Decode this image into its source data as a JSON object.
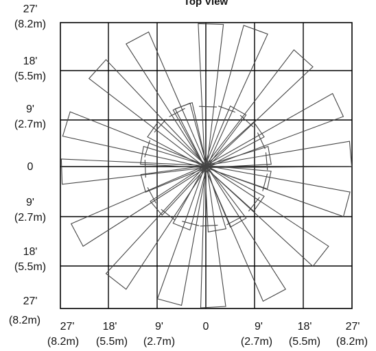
{
  "title": "Top View",
  "y_labels": [
    {
      "ft": "27'",
      "m": "(8.2m)"
    },
    {
      "ft": "18'",
      "m": "(5.5m)"
    },
    {
      "ft": "9'",
      "m": "(2.7m)"
    },
    {
      "ft": "0",
      "m": ""
    },
    {
      "ft": "9'",
      "m": "(2.7m)"
    },
    {
      "ft": "18'",
      "m": "(5.5m)"
    },
    {
      "ft": "27'",
      "m": "(8.2m)"
    }
  ],
  "x_labels": [
    {
      "ft": "27'",
      "m": "(8.2m)"
    },
    {
      "ft": "18'",
      "m": "(5.5m)"
    },
    {
      "ft": "9'",
      "m": "(2.7m)"
    },
    {
      "ft": "0",
      "m": ""
    },
    {
      "ft": "9'",
      "m": "(2.7m)"
    },
    {
      "ft": "18'",
      "m": "(5.5m)"
    },
    {
      "ft": "27'",
      "m": "(8.2m)"
    }
  ],
  "detection_zones": [
    {
      "angle_deg": -88,
      "length_ft": 27
    },
    {
      "angle_deg": -70,
      "length_ft": 27
    },
    {
      "angle_deg": -48,
      "length_ft": 27
    },
    {
      "angle_deg": -25,
      "length_ft": 27
    },
    {
      "angle_deg": -5,
      "length_ft": 27
    },
    {
      "angle_deg": 15,
      "length_ft": 27
    },
    {
      "angle_deg": 38,
      "length_ft": 27
    },
    {
      "angle_deg": 62,
      "length_ft": 27
    },
    {
      "angle_deg": 87,
      "length_ft": 27
    },
    {
      "angle_deg": 105,
      "length_ft": 26
    },
    {
      "angle_deg": 128,
      "length_ft": 27
    },
    {
      "angle_deg": 152,
      "length_ft": 27
    },
    {
      "angle_deg": 178,
      "length_ft": 27
    },
    {
      "angle_deg": 197,
      "length_ft": 27
    },
    {
      "angle_deg": 222,
      "length_ft": 27
    },
    {
      "angle_deg": 242,
      "length_ft": 27
    },
    {
      "angle_deg": -112,
      "length_ft": 12
    },
    {
      "angle_deg": -60,
      "length_ft": 12
    },
    {
      "angle_deg": -35,
      "length_ft": 12
    },
    {
      "angle_deg": -10,
      "length_ft": 12
    },
    {
      "angle_deg": 12,
      "length_ft": 12
    },
    {
      "angle_deg": 35,
      "length_ft": 12
    },
    {
      "angle_deg": 60,
      "length_ft": 12
    },
    {
      "angle_deg": 80,
      "length_ft": 12
    },
    {
      "angle_deg": 112,
      "length_ft": 12
    },
    {
      "angle_deg": 140,
      "length_ft": 12
    },
    {
      "angle_deg": 165,
      "length_ft": 12
    },
    {
      "angle_deg": 190,
      "length_ft": 12
    },
    {
      "angle_deg": 215,
      "length_ft": 12
    },
    {
      "angle_deg": 250,
      "length_ft": 12
    }
  ]
}
